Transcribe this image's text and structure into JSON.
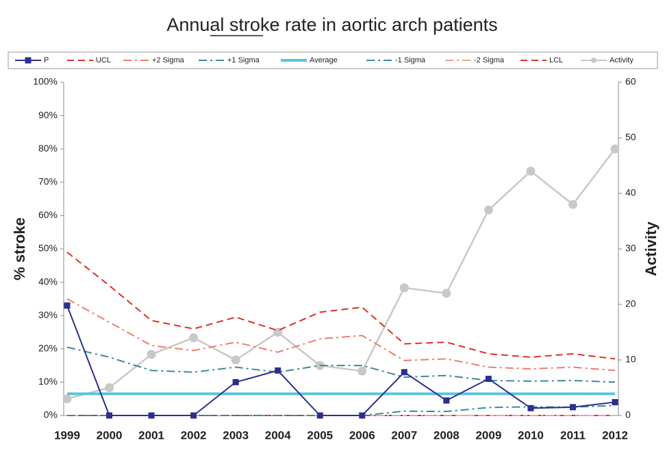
{
  "chart_data": {
    "type": "line",
    "title": "Annual stroke rate in aortic arch patients",
    "y_label": "% stroke",
    "y2_label": "Activity",
    "categories": [
      "1999",
      "2000",
      "2001",
      "2002",
      "2003",
      "2004",
      "2005",
      "2006",
      "2007",
      "2008",
      "2009",
      "2010",
      "2011",
      "2012"
    ],
    "ylim": [
      0,
      100
    ],
    "yticks": [
      {
        "value": 0,
        "label": "0%"
      },
      {
        "value": 10,
        "label": "10%"
      },
      {
        "value": 20,
        "label": "20%"
      },
      {
        "value": 30,
        "label": "30%"
      },
      {
        "value": 40,
        "label": "40%"
      },
      {
        "value": 50,
        "label": "50%"
      },
      {
        "value": 60,
        "label": "60%"
      },
      {
        "value": 70,
        "label": "70%"
      },
      {
        "value": 80,
        "label": "80%"
      },
      {
        "value": 90,
        "label": "90%"
      },
      {
        "value": 100,
        "label": "100%"
      }
    ],
    "y2lim": [
      0,
      60
    ],
    "y2ticks": [
      0,
      10,
      20,
      30,
      40,
      50,
      60
    ],
    "grid": false,
    "legend": "top",
    "series": [
      {
        "name": "P",
        "color": "#2b2f8f",
        "dash": "solid",
        "marker": "square",
        "values": [
          33,
          0,
          0,
          0,
          10,
          13.5,
          0,
          0,
          13,
          4.5,
          11,
          2.2,
          2.5,
          4
        ]
      },
      {
        "name": "UCL",
        "color": "#e03020",
        "dash": "dash",
        "marker": "none",
        "values": [
          49,
          39,
          28.5,
          26,
          29.5,
          25.5,
          31,
          32.5,
          21.5,
          22,
          18.5,
          17.5,
          18.5,
          17
        ]
      },
      {
        "name": "+2 Sigma",
        "color": "#ef7c6c",
        "dash": "dashdot",
        "marker": "none",
        "values": [
          35,
          28,
          21,
          19.5,
          22,
          19,
          23,
          24,
          16.5,
          17,
          14.5,
          14,
          14.5,
          13.5
        ]
      },
      {
        "name": "+1 Sigma",
        "color": "#3a8a9a",
        "dash": "dashdot",
        "marker": "none",
        "values": [
          20.5,
          17.5,
          13.5,
          13,
          14.5,
          13,
          15,
          15,
          11.5,
          12,
          10.5,
          10.3,
          10.5,
          10
        ]
      },
      {
        "name": "Average",
        "color": "#5bc3de",
        "dash": "solid",
        "marker": "none",
        "values": [
          6.5,
          6.5,
          6.5,
          6.5,
          6.5,
          6.5,
          6.5,
          6.5,
          6.5,
          6.5,
          6.5,
          6.5,
          6.5,
          6.5
        ]
      },
      {
        "name": "-1 Sigma",
        "color": "#2f8fa0",
        "dash": "dashdot",
        "marker": "none",
        "values": [
          0,
          0,
          0,
          0,
          0,
          0,
          0,
          0,
          1.3,
          1.2,
          2.4,
          2.6,
          2.5,
          3
        ]
      },
      {
        "name": "-2 Sigma",
        "color": "#f4a090",
        "dash": "dashdot",
        "marker": "none",
        "values": [
          0,
          0,
          0,
          0,
          0,
          0,
          0,
          0,
          0,
          0,
          0,
          0,
          0,
          0
        ]
      },
      {
        "name": "LCL",
        "color": "#e03020",
        "dash": "dash",
        "marker": "none",
        "values": [
          0,
          0,
          0,
          0,
          0,
          0,
          0,
          0,
          0,
          0,
          0,
          0,
          0,
          0
        ]
      },
      {
        "name": "Activity",
        "color": "#c8c8c8",
        "dash": "solid",
        "marker": "circle",
        "axis": "y2",
        "values": [
          3,
          5,
          11,
          14,
          10,
          15,
          9,
          8,
          23,
          22,
          37,
          44,
          38,
          48
        ]
      }
    ]
  }
}
